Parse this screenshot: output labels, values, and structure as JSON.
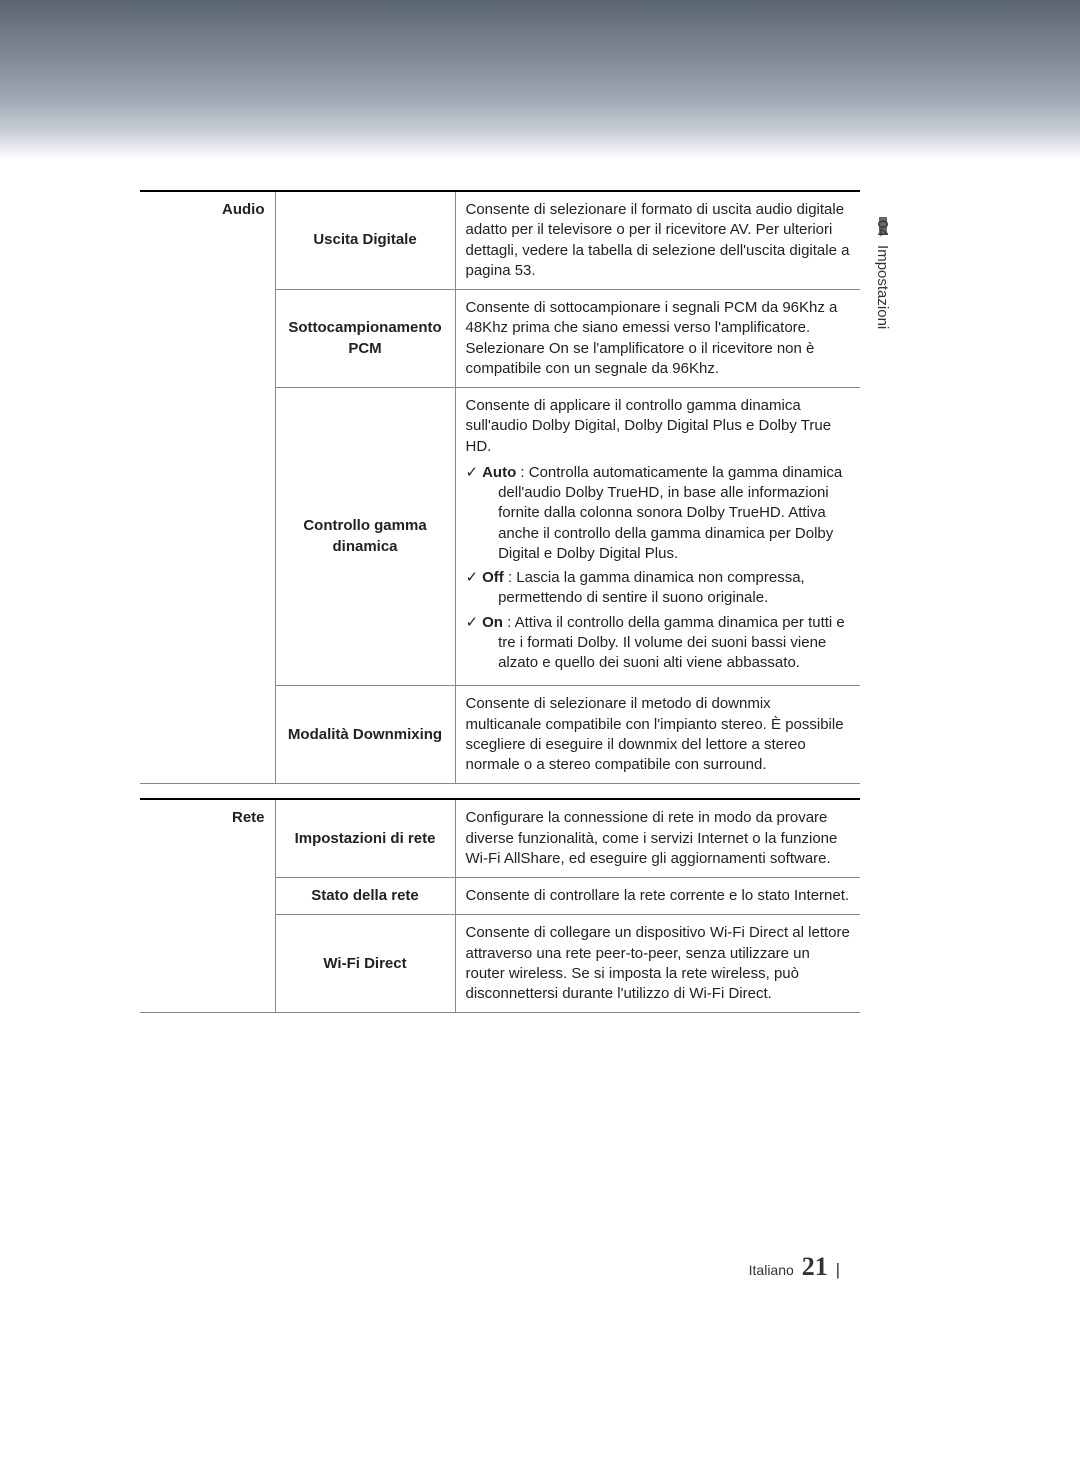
{
  "sideTab": {
    "number": "04",
    "label": "Impostazioni"
  },
  "sections": [
    {
      "category": "Audio",
      "rows": [
        {
          "name": "Uscita Digitale",
          "description": "Consente di selezionare il formato di uscita audio digitale adatto per il televisore o per il ricevitore AV. Per ulteriori dettagli, vedere la tabella di selezione dell'uscita digitale a pagina 53.",
          "options": []
        },
        {
          "name": "Sottocampionamento PCM",
          "description": "Consente di sottocampionare i segnali PCM da 96Khz a 48Khz prima che siano emessi verso l'amplificatore. Selezionare On se l'amplificatore o il ricevitore non è compatibile con un segnale da 96Khz.",
          "options": []
        },
        {
          "name": "Controllo gamma dinamica",
          "description": "Consente di applicare il controllo gamma dinamica sull'audio Dolby Digital, Dolby Digital Plus e Dolby True HD.",
          "options": [
            {
              "label": "Auto",
              "text": " : Controlla automaticamente la gamma dinamica dell'audio Dolby TrueHD, in base alle informazioni fornite dalla colonna sonora Dolby TrueHD. Attiva anche il controllo della gamma dinamica per Dolby Digital e Dolby Digital Plus."
            },
            {
              "label": "Off",
              "text": " : Lascia la gamma dinamica non compressa, permettendo di sentire il suono originale."
            },
            {
              "label": "On",
              "text": " : Attiva il controllo della gamma dinamica per tutti e tre i formati Dolby. Il volume dei suoni bassi viene alzato e quello dei suoni alti viene abbassato."
            }
          ]
        },
        {
          "name": "Modalità Downmixing",
          "description": "Consente di selezionare il metodo di downmix multicanale compatibile con l'impianto stereo. È possibile scegliere di eseguire il downmix del lettore a stereo normale o a stereo compatibile con surround.",
          "options": []
        }
      ]
    },
    {
      "category": "Rete",
      "rows": [
        {
          "name": "Impostazioni di rete",
          "description": "Configurare la connessione di rete in modo da provare diverse funzionalità, come i servizi Internet o la funzione Wi-Fi AllShare, ed eseguire gli aggiornamenti software.",
          "options": []
        },
        {
          "name": "Stato della rete",
          "description": "Consente di controllare la rete corrente e lo stato Internet.",
          "options": []
        },
        {
          "name": "Wi-Fi Direct",
          "description": "Consente di collegare un dispositivo Wi-Fi Direct al lettore attraverso una rete peer-to-peer, senza utilizzare un router wireless. Se si imposta la rete wireless, può disconnettersi durante l'utilizzo di Wi-Fi Direct.",
          "options": []
        }
      ]
    }
  ],
  "footer": {
    "language": "Italiano",
    "pageNumber": "21"
  }
}
